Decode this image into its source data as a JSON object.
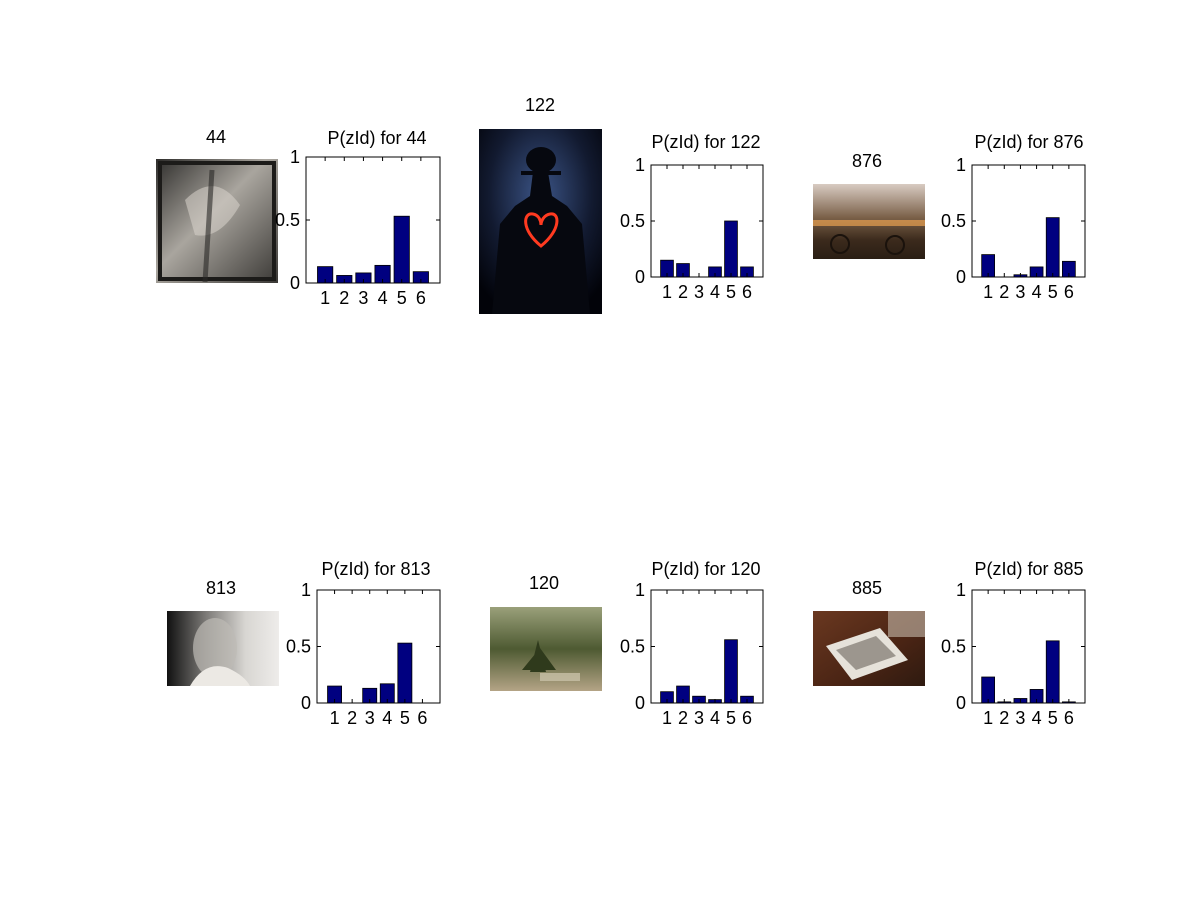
{
  "bar_color": "#000080",
  "chart_data": [
    {
      "type": "bar",
      "image_label": "44",
      "title": "P(zId) for 44",
      "categories": [
        "1",
        "2",
        "3",
        "4",
        "5",
        "6"
      ],
      "values": [
        0.13,
        0.06,
        0.08,
        0.14,
        0.53,
        0.09
      ],
      "ylim": [
        0,
        1
      ],
      "yticks": [
        "0",
        "0.5",
        "1"
      ],
      "image_description": "sepia textured still life",
      "image_colors": [
        "#3a3a38",
        "#8a8680",
        "#c8c4bc"
      ]
    },
    {
      "type": "bar",
      "image_label": "122",
      "title": "P(zId) for 122",
      "categories": [
        "1",
        "2",
        "3",
        "4",
        "5",
        "6"
      ],
      "values": [
        0.15,
        0.12,
        0.0,
        0.09,
        0.5,
        0.09
      ],
      "ylim": [
        0,
        1
      ],
      "yticks": [
        "0",
        "0.5",
        "1"
      ],
      "image_description": "silhouette with glowing red heart",
      "image_colors": [
        "#05070d",
        "#2a3c66",
        "#ff3a20"
      ]
    },
    {
      "type": "bar",
      "image_label": "876",
      "title": "P(zId) for 876",
      "categories": [
        "1",
        "2",
        "3",
        "4",
        "5",
        "6"
      ],
      "values": [
        0.2,
        0.0,
        0.02,
        0.09,
        0.53,
        0.14
      ],
      "ylim": [
        0,
        1
      ],
      "yticks": [
        "0",
        "0.5",
        "1"
      ],
      "image_description": "canal with bicycles at dusk",
      "image_colors": [
        "#c9b6a8",
        "#4d3a2a",
        "#e8a050"
      ]
    },
    {
      "type": "bar",
      "image_label": "813",
      "title": "P(zId) for 813",
      "categories": [
        "1",
        "2",
        "3",
        "4",
        "5",
        "6"
      ],
      "values": [
        0.15,
        0.0,
        0.13,
        0.17,
        0.53,
        0.0
      ],
      "ylim": [
        0,
        1
      ],
      "yticks": [
        "0",
        "0.5",
        "1"
      ],
      "image_description": "black and white portrait",
      "image_colors": [
        "#1a1a1a",
        "#8a8a88",
        "#e8e6e2"
      ]
    },
    {
      "type": "bar",
      "image_label": "120",
      "title": "P(zId) for 120",
      "categories": [
        "1",
        "2",
        "3",
        "4",
        "5",
        "6"
      ],
      "values": [
        0.1,
        0.15,
        0.06,
        0.03,
        0.56,
        0.06
      ],
      "ylim": [
        0,
        1
      ],
      "yticks": [
        "0",
        "0.5",
        "1"
      ],
      "image_description": "grass tree in bushland",
      "image_colors": [
        "#7d8c5a",
        "#3f4a2a",
        "#b0a080"
      ]
    },
    {
      "type": "bar",
      "image_label": "885",
      "title": "P(zId) for 885",
      "categories": [
        "1",
        "2",
        "3",
        "4",
        "5",
        "6"
      ],
      "values": [
        0.23,
        0.01,
        0.04,
        0.12,
        0.55,
        0.01
      ],
      "ylim": [
        0,
        1
      ],
      "yticks": [
        "0",
        "0.5",
        "1"
      ],
      "image_description": "book on wooden table",
      "image_colors": [
        "#5a2c18",
        "#e0dcd4",
        "#3a2a22"
      ]
    }
  ]
}
